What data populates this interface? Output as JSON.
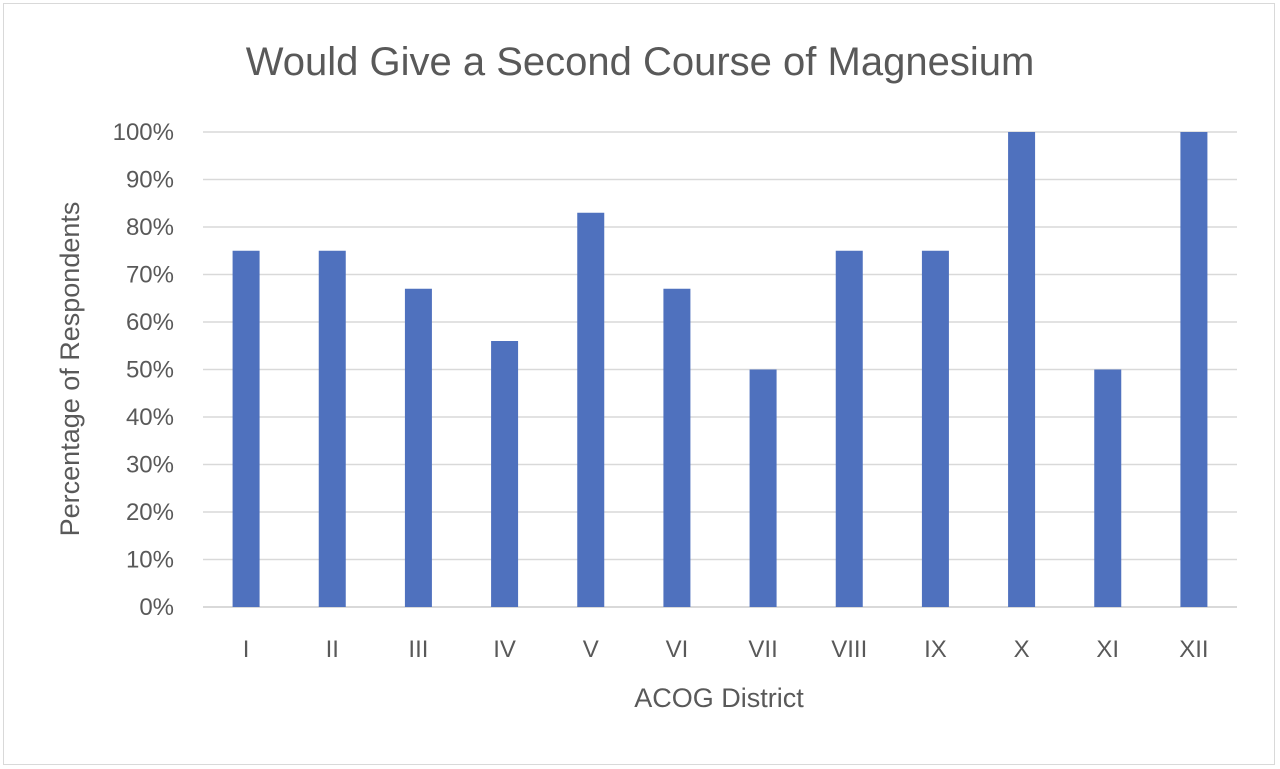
{
  "chart_data": {
    "type": "bar",
    "title": "Would Give a Second Course of Magnesium",
    "xlabel": "ACOG District",
    "ylabel": "Percentage of Respondents",
    "categories": [
      "I",
      "II",
      "III",
      "IV",
      "V",
      "VI",
      "VII",
      "VIII",
      "IX",
      "X",
      "XI",
      "XII"
    ],
    "values": [
      75,
      75,
      67,
      56,
      83,
      67,
      50,
      75,
      75,
      100,
      50,
      100
    ],
    "ylim": [
      0,
      100
    ],
    "ytick_values": [
      0,
      10,
      20,
      30,
      40,
      50,
      60,
      70,
      80,
      90,
      100
    ],
    "yticks": [
      "0%",
      "10%",
      "20%",
      "30%",
      "40%",
      "50%",
      "60%",
      "70%",
      "80%",
      "90%",
      "100%"
    ],
    "grid": true,
    "legend": "none",
    "bar_color": "#4f71be"
  }
}
